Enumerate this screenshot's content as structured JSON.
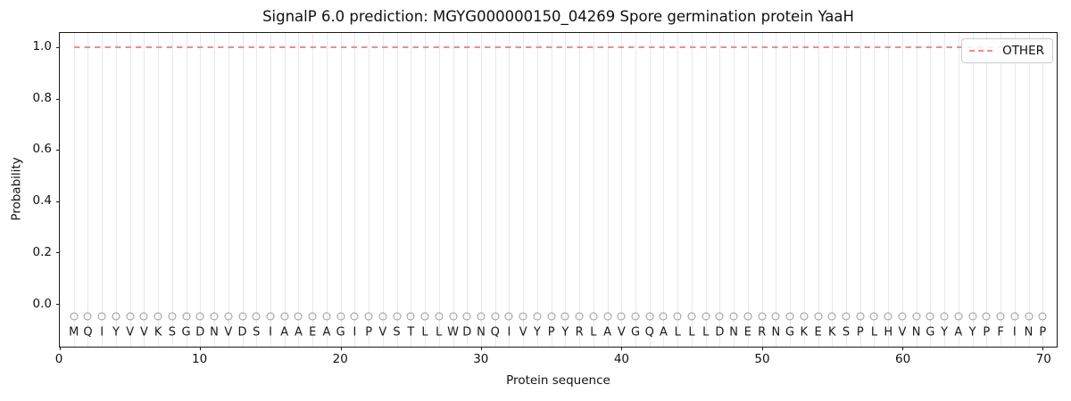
{
  "title": "SignalP 6.0 prediction: MGYG000000150_04269 Spore germination protein YaaH",
  "colors": {
    "other_line": "#f28b8b",
    "grid": "#e9e9e9",
    "marker": "#999999",
    "letter": "#1a1a1a",
    "spine": "#1a1a1a",
    "legend_border": "#cccccc"
  },
  "legend": {
    "entries": [
      {
        "label": "OTHER",
        "style": "dashed",
        "color": "#f28b8b"
      }
    ],
    "position": "upper right"
  },
  "chart_data": {
    "type": "line",
    "title": "SignalP 6.0 prediction: MGYG000000150_04269 Spore germination protein YaaH",
    "xlabel": "Protein sequence",
    "ylabel": "Probability",
    "xlim": [
      0,
      71
    ],
    "ylim": [
      -0.168,
      1.056
    ],
    "xticks": [
      0,
      10,
      20,
      30,
      40,
      50,
      60,
      70
    ],
    "yticks": [
      0.0,
      0.2,
      0.4,
      0.6,
      0.8,
      1.0
    ],
    "grid": "vertical gridline at every residue position 1-70",
    "legend_position": "upper right",
    "series": [
      {
        "name": "OTHER",
        "style": "dashed",
        "color": "#f28b8b",
        "x_start": 1,
        "x_end": 70,
        "constant_y": 1.0,
        "note": "flat dashed line, probability 1.0 for all 70 residues"
      }
    ],
    "sequence_track": {
      "residues": "MQIYVVKSGDNVDSIAAEAGIPVSTLLWDNQIVYPYRLAVGQALLLDNERNGKEKSPLHVNGYAYPFINP",
      "marker": "open-circle",
      "marker_y": -0.05,
      "label_y": -0.112
    }
  }
}
